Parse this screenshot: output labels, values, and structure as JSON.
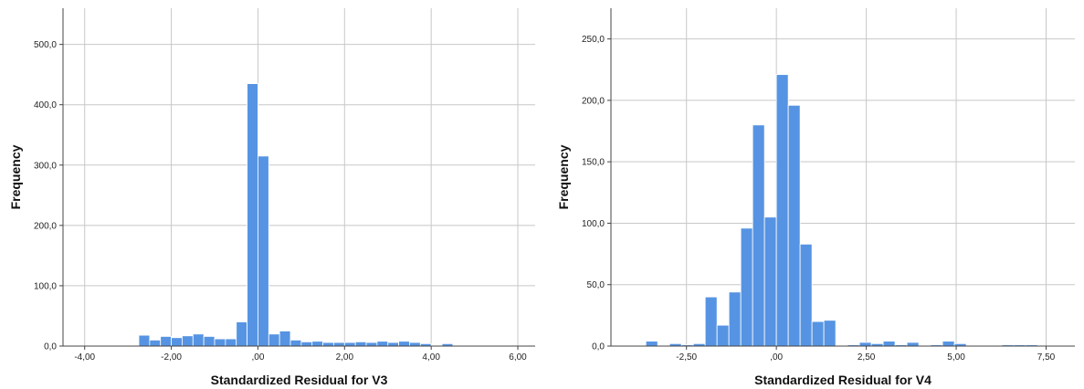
{
  "colors": {
    "bar_fill": "#5694e3",
    "bar_stroke": "#ffffff",
    "grid": "#c8c8c8",
    "axis": "#444444"
  },
  "chart_data": [
    {
      "type": "bar",
      "xlabel": "Standardized Residual for V3",
      "ylabel": "Frequency",
      "ylim": [
        0,
        560
      ],
      "xlim": [
        -4.5,
        6.4
      ],
      "grid": true,
      "y_ticks": [
        0,
        100,
        200,
        300,
        400,
        500
      ],
      "y_tick_labels": [
        "0,0",
        "100,0",
        "200,0",
        "300,0",
        "400,0",
        "500,0"
      ],
      "x_ticks": [
        -4,
        -2,
        0,
        2,
        4,
        6
      ],
      "x_tick_labels": [
        "-4,00",
        "-2,00",
        ",00",
        "2,00",
        "4,00",
        "6,00"
      ],
      "bin_width": 0.25,
      "bins_start": [
        -2.75,
        -2.5,
        -2.25,
        -2.0,
        -1.75,
        -1.5,
        -1.25,
        -1.0,
        -0.75,
        -0.5,
        -0.25,
        0.0,
        0.25,
        0.5,
        0.75,
        1.0,
        1.25,
        1.5,
        1.75,
        2.0,
        2.25,
        2.5,
        2.75,
        3.0,
        3.25,
        3.5,
        3.75,
        4.0,
        4.25
      ],
      "values": [
        18,
        10,
        16,
        14,
        17,
        20,
        16,
        12,
        12,
        40,
        435,
        315,
        20,
        25,
        10,
        7,
        8,
        6,
        6,
        6,
        7,
        6,
        8,
        6,
        8,
        6,
        4,
        1,
        4
      ]
    },
    {
      "type": "bar",
      "xlabel": "Standardized Residual for V4",
      "ylabel": "Frequency",
      "ylim": [
        0,
        275
      ],
      "xlim": [
        -4.6,
        8.3
      ],
      "grid": true,
      "y_ticks": [
        0,
        50,
        100,
        150,
        200,
        250
      ],
      "y_tick_labels": [
        "0,0",
        "50,0",
        "100,0",
        "150,0",
        "200,0",
        "250,0"
      ],
      "x_ticks": [
        -2.5,
        0,
        2.5,
        5,
        7.5
      ],
      "x_tick_labels": [
        "-2,50",
        ",00",
        "2,50",
        "5,00",
        "7,50"
      ],
      "bin_width": 0.33,
      "bins_start": [
        -3.63,
        -3.3,
        -2.97,
        -2.64,
        -2.31,
        -1.98,
        -1.65,
        -1.32,
        -0.99,
        -0.66,
        -0.33,
        0.0,
        0.33,
        0.66,
        0.99,
        1.32,
        1.65,
        1.98,
        2.31,
        2.64,
        2.97,
        3.3,
        3.63,
        3.96,
        4.29,
        4.62,
        4.95,
        5.28,
        5.61,
        5.94,
        6.27,
        6.6,
        6.93
      ],
      "values": [
        4,
        0,
        2,
        1,
        2,
        40,
        17,
        44,
        96,
        180,
        105,
        221,
        196,
        83,
        20,
        21,
        0,
        1,
        3,
        2,
        4,
        1,
        3,
        0,
        1,
        4,
        2,
        0,
        0,
        0,
        1,
        1,
        1
      ]
    }
  ]
}
